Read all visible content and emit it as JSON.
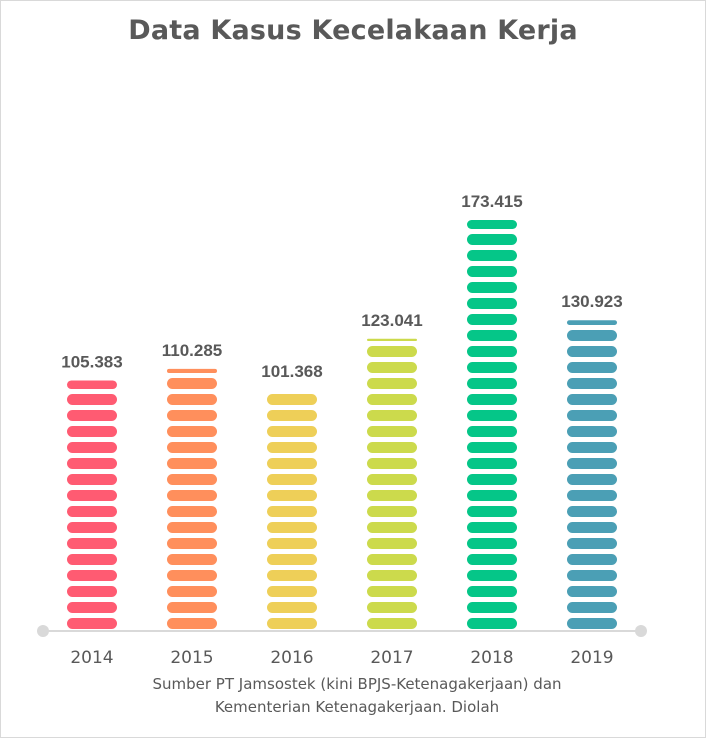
{
  "chart_data": {
    "type": "bar",
    "title": "Data Kasus Kecelakaan Kerja",
    "categories": [
      "2014",
      "2015",
      "2016",
      "2017",
      "2018",
      "2019"
    ],
    "values": [
      105383,
      110285,
      101368,
      123041,
      173415,
      130923
    ],
    "data_labels": [
      "105.383",
      "110.285",
      "101.368",
      "123.041",
      "173.415",
      "130.923"
    ],
    "colors": [
      "#ff5b72",
      "#ff8f5c",
      "#eecf58",
      "#ccda4c",
      "#05c688",
      "#4b9fb5"
    ],
    "xlabel": "",
    "ylabel": "",
    "ylim": [
      0,
      173415
    ],
    "grid": false,
    "legend": "none"
  },
  "source": {
    "line1": "Sumber PT Jamsostek (kini BPJS-Ketenagakerjaan) dan",
    "line2": "Kementerian Ketenagakerjaan. Diolah"
  }
}
